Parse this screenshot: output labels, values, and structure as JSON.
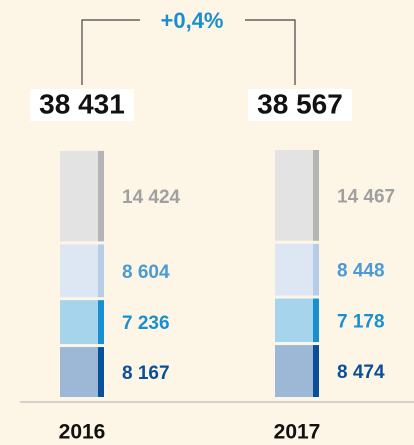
{
  "chart_data": {
    "type": "stacked_bar",
    "annotation": "+0,4%",
    "categories": [
      "2016",
      "2017"
    ],
    "totals": [
      38431,
      38567
    ],
    "total_labels": [
      "38 431",
      "38 567"
    ],
    "series": [
      {
        "color": "#9db8d6",
        "stripe_color": "#0a4f9a",
        "label_color": "#0a4f9a",
        "values": [
          8167,
          8474
        ],
        "value_labels": [
          "8 167",
          "8 474"
        ]
      },
      {
        "color": "#a6d4ec",
        "stripe_color": "#1a8fd0",
        "label_color": "#1a8fd0",
        "values": [
          7236,
          7178
        ],
        "value_labels": [
          "7 236",
          "7 178"
        ]
      },
      {
        "color": "#dde6f3",
        "stripe_color": "#b5cde8",
        "label_color": "#4a9ad8",
        "values": [
          8604,
          8448
        ],
        "value_labels": [
          "8 604",
          "8 448"
        ]
      },
      {
        "color": "#e3e3e3",
        "stripe_color": "#b5b5b5",
        "label_color": "#a0a0a0",
        "values": [
          14424,
          14467
        ],
        "value_labels": [
          "14 424",
          "14 467"
        ]
      }
    ]
  }
}
